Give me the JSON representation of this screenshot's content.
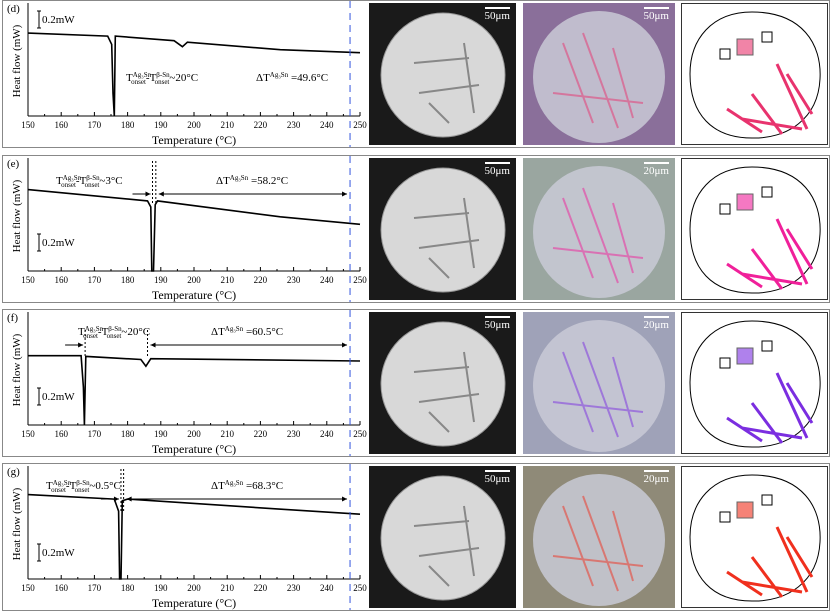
{
  "panels": [
    {
      "label": "(d)",
      "scale1": "50μm",
      "scale2": "50μm",
      "annot_left": "T_onset^Ag3Sn - T_onset^β-Sn ~20°C",
      "dT": "ΔT^Ag3Sn =49.6°C",
      "dT_value": "=49.6°C",
      "diff_value": "~20°C",
      "accent": "#e8336e",
      "m2color": "#8a6f9a"
    },
    {
      "label": "(e)",
      "scale1": "50μm",
      "scale2": "20μm",
      "annot_left": "T_onset^Ag3Sn - T_onset^β-Sn ~3°C",
      "dT": "ΔT^Ag3Sn =58.2°C",
      "dT_value": "=58.2°C",
      "diff_value": "~3°C",
      "accent": "#f0209a",
      "m2color": "#9aa6a0"
    },
    {
      "label": "(f)",
      "scale1": "50μm",
      "scale2": "20μm",
      "annot_left": "T_onset^Ag3Sn - T_onset^β-Sn ~20°C",
      "dT": "ΔT^Ag3Sn =60.5°C",
      "dT_value": "=60.5°C",
      "diff_value": "~20°C",
      "accent": "#7b2ee0",
      "m2color": "#9fa2b8"
    },
    {
      "label": "(g)",
      "scale1": "50μm",
      "scale2": "20μm",
      "annot_left": "T_onset^Ag3Sn - T_onset^β-Sn ~0.5°C",
      "dT": "ΔT^Ag3Sn =68.3°C",
      "dT_value": "=68.3°C",
      "diff_value": "~0.5°C",
      "accent": "#f0301e",
      "m2color": "#8f8a78"
    }
  ],
  "chart_data": [
    {
      "type": "line",
      "panel": "(d)",
      "xlabel": "Temperature (°C)",
      "ylabel": "Heat flow (mW)",
      "xlim": [
        150,
        250
      ],
      "ylim": [
        0,
        1.5
      ],
      "xticks": [
        "150",
        "160",
        "170",
        "180",
        "190",
        "200",
        "210",
        "220",
        "230",
        "240",
        "250"
      ],
      "scale_bar": "0.2mW",
      "marker_line": 247,
      "x": [
        150,
        174,
        175.2,
        175.6,
        176,
        176.3,
        194,
        196.5,
        198,
        226,
        250
      ],
      "y": [
        1.1,
        1.06,
        0.95,
        0.3,
        0,
        1.06,
        1.0,
        0.92,
        0.98,
        0.88,
        0.84
      ]
    },
    {
      "type": "line",
      "panel": "(e)",
      "xlabel": "Temperature (°C)",
      "ylabel": "Heat flow (mW)",
      "xlim": [
        150,
        250
      ],
      "ylim": [
        0,
        1.5
      ],
      "xticks": [
        "150",
        "160",
        "170",
        "180",
        "190",
        "200",
        "210",
        "220",
        "230",
        "240",
        "250"
      ],
      "scale_bar": "0.2mW",
      "marker_line": 247,
      "x": [
        150,
        186,
        187,
        187.3,
        187.8,
        188.3,
        189,
        226,
        250
      ],
      "y": [
        1.08,
        0.93,
        0.85,
        0,
        0,
        0.88,
        0.93,
        0.72,
        0.62
      ],
      "onset_lines": [
        187.5,
        188.5
      ]
    },
    {
      "type": "line",
      "panel": "(f)",
      "xlabel": "Temperature (°C)",
      "ylabel": "Heat flow (mW)",
      "xlim": [
        150,
        250
      ],
      "ylim": [
        0,
        1.5
      ],
      "xticks": [
        "150",
        "160",
        "170",
        "180",
        "190",
        "200",
        "210",
        "220",
        "230",
        "240",
        "250"
      ],
      "scale_bar": "0.2mW",
      "marker_line": 247,
      "x": [
        150,
        166,
        166.7,
        167,
        167.4,
        184,
        185.5,
        187,
        250
      ],
      "y": [
        0.92,
        0.92,
        0.5,
        0,
        0.91,
        0.87,
        0.78,
        0.88,
        0.85
      ],
      "onset_lines": [
        167.2,
        186
      ]
    },
    {
      "type": "line",
      "panel": "(g)",
      "xlabel": "Temperature (°C)",
      "ylabel": "Heat flow (mW)",
      "xlim": [
        150,
        250
      ],
      "ylim": [
        0,
        1.5
      ],
      "xticks": [
        "150",
        "160",
        "170",
        "180",
        "190",
        "200",
        "210",
        "220",
        "230",
        "240",
        "250"
      ],
      "scale_bar": "0.2mW",
      "marker_line": 247,
      "x": [
        150,
        176,
        177.3,
        177.6,
        178,
        178.4,
        180,
        225,
        250
      ],
      "y": [
        1.12,
        1.06,
        0.9,
        0,
        0,
        1.04,
        1.06,
        0.93,
        0.86
      ],
      "onset_lines": [
        178,
        178.8
      ]
    }
  ]
}
